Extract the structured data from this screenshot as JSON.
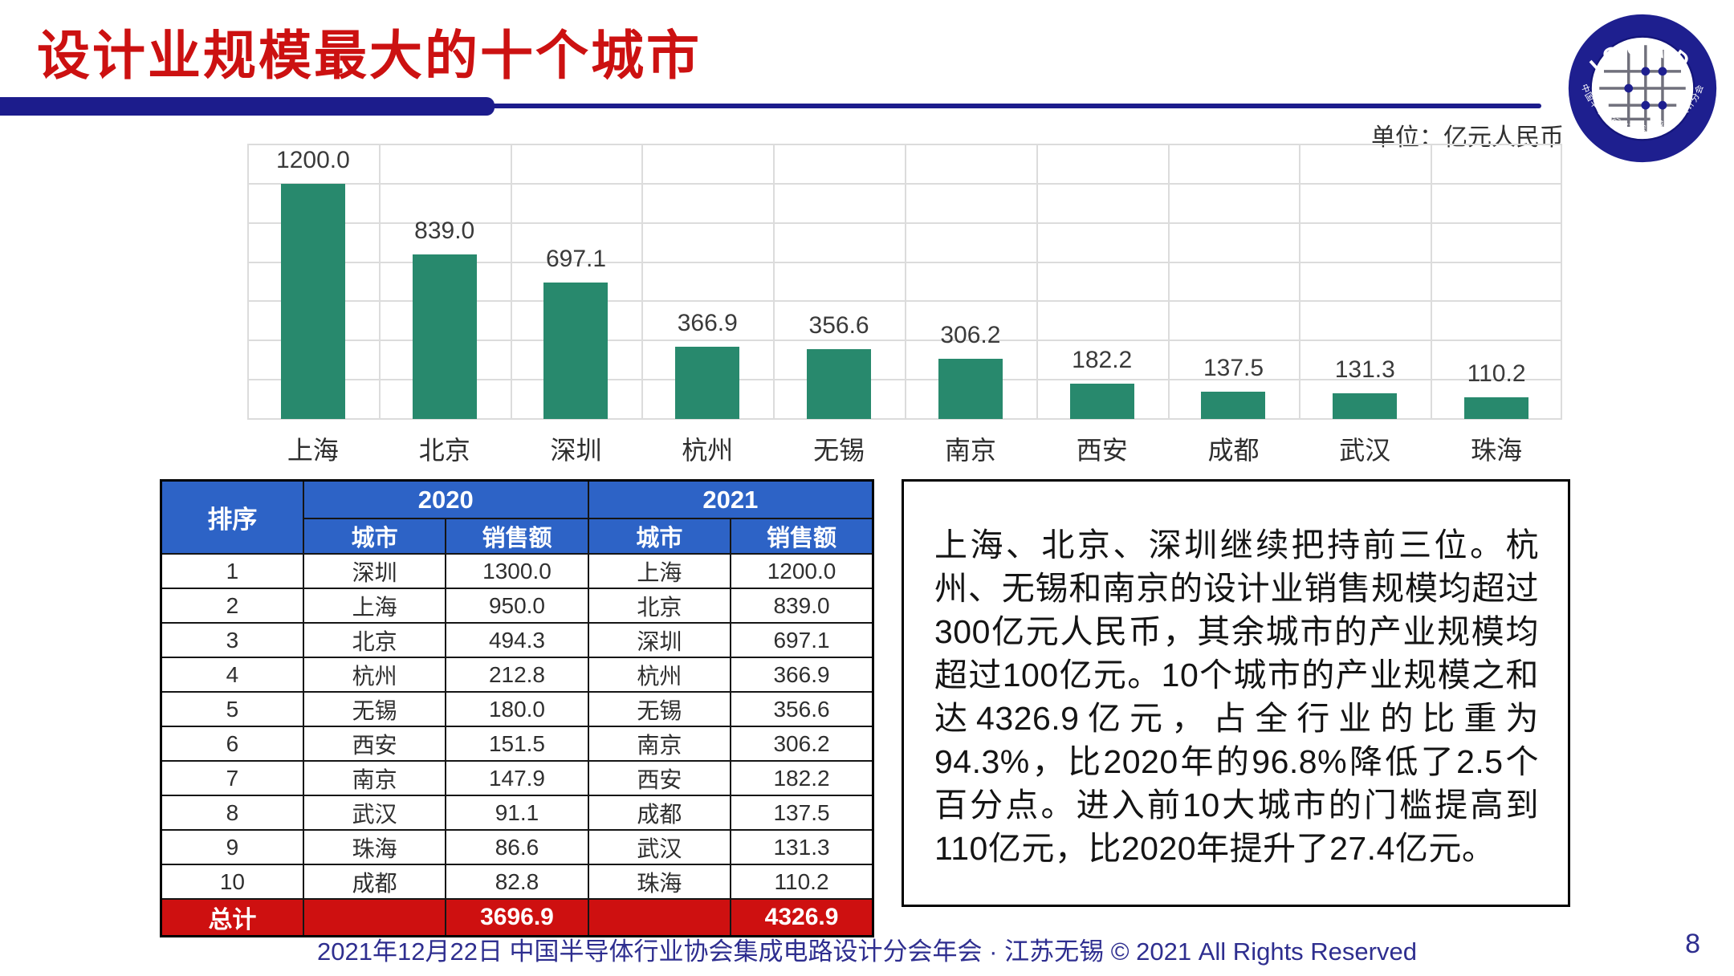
{
  "slide": {
    "title": "设计业规模最大的十个城市",
    "unit_label": "单位：亿元人民币",
    "footer": "2021年12月22日 中国半导体行业协会集成电路设计分会年会 · 江苏无锡 © 2021 All Rights Reserved",
    "page_number": "8"
  },
  "logo": {
    "top_text": "ICCAD",
    "bottom_text": "中国半导体行业协会集成电路设计分会"
  },
  "chart_data": {
    "type": "bar",
    "title": "",
    "unit": "亿元人民币",
    "categories": [
      "上海",
      "北京",
      "深圳",
      "杭州",
      "无锡",
      "南京",
      "西安",
      "成都",
      "武汉",
      "珠海"
    ],
    "values": [
      1200.0,
      839.0,
      697.1,
      366.9,
      356.6,
      306.2,
      182.2,
      137.5,
      131.3,
      110.2
    ],
    "value_labels": [
      "1200.0",
      "839.0",
      "697.1",
      "366.9",
      "356.6",
      "306.2",
      "182.2",
      "137.5",
      "131.3",
      "110.2"
    ],
    "xlabel": "",
    "ylabel": "",
    "ylim": [
      0,
      1400
    ],
    "ytick_step": 200,
    "yticks": [
      "1400.0",
      "1200.0",
      "1000.0",
      "800.0",
      "600.0",
      "400.0",
      "200.0",
      "0.0"
    ],
    "grid": true,
    "legend": "none",
    "bar_color": "#28896d"
  },
  "table": {
    "header": {
      "rank": "排序",
      "y2020": "2020",
      "y2021": "2021",
      "city2020": "城市",
      "sales2020": "销售额",
      "city2021": "城市",
      "sales2021": "销售额"
    },
    "rows": [
      {
        "rank": "1",
        "city2020": "深圳",
        "sales2020": "1300.0",
        "city2021": "上海",
        "sales2021": "1200.0"
      },
      {
        "rank": "2",
        "city2020": "上海",
        "sales2020": "950.0",
        "city2021": "北京",
        "sales2021": "839.0"
      },
      {
        "rank": "3",
        "city2020": "北京",
        "sales2020": "494.3",
        "city2021": "深圳",
        "sales2021": "697.1"
      },
      {
        "rank": "4",
        "city2020": "杭州",
        "sales2020": "212.8",
        "city2021": "杭州",
        "sales2021": "366.9"
      },
      {
        "rank": "5",
        "city2020": "无锡",
        "sales2020": "180.0",
        "city2021": "无锡",
        "sales2021": "356.6"
      },
      {
        "rank": "6",
        "city2020": "西安",
        "sales2020": "151.5",
        "city2021": "南京",
        "sales2021": "306.2"
      },
      {
        "rank": "7",
        "city2020": "南京",
        "sales2020": "147.9",
        "city2021": "西安",
        "sales2021": "182.2"
      },
      {
        "rank": "8",
        "city2020": "武汉",
        "sales2020": "91.1",
        "city2021": "成都",
        "sales2021": "137.5"
      },
      {
        "rank": "9",
        "city2020": "珠海",
        "sales2020": "86.6",
        "city2021": "武汉",
        "sales2021": "131.3"
      },
      {
        "rank": "10",
        "city2020": "成都",
        "sales2020": "82.8",
        "city2021": "珠海",
        "sales2021": "110.2"
      }
    ],
    "total": {
      "label": "总计",
      "city2020": "",
      "sales2020": "3696.9",
      "city2021": "",
      "sales2021": "4326.9"
    }
  },
  "commentary": "上海、北京、深圳继续把持前三位。杭州、无锡和南京的设计业销售规模均超过300亿元人民币，其余城市的产业规模均超过100亿元。10个城市的产业规模之和达4326.9亿元，占全行业的比重为94.3%，比2020年的96.8%降低了2.5个百分点。进入前10大城市的门槛提高到110亿元，比2020年提升了27.4亿元。",
  "colors": {
    "title_red": "#cc1111",
    "rule_navy": "#1c1c8c",
    "bar_green": "#28896d",
    "table_header_blue": "#2d63c6",
    "total_row_red": "#ce1010",
    "footer_navy": "#2e2e8f",
    "gridline": "#dcdcdc"
  }
}
